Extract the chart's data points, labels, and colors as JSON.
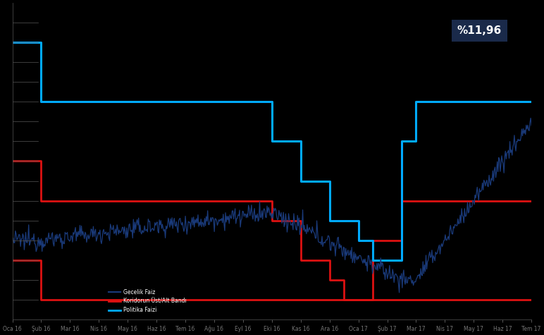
{
  "background_color": "#000000",
  "axes_color": "#000000",
  "tick_color": "#777777",
  "spine_color": "#555555",
  "annotation_text": "%11,96",
  "annotation_bg": "#1a2a4a",
  "annotation_fg": "#ffffff",
  "x_tick_labels": [
    "Oca 16",
    "Şub 16",
    "Mar 16",
    "Nis 16",
    "May 16",
    "Haz 16",
    "Tem 16",
    "Ağu 16",
    "Eyl 16",
    "Eki 16",
    "Kas 16",
    "Ara 16",
    "Oca 17",
    "Şub 17",
    "Mar 17",
    "Nis 17",
    "May 17",
    "Haz 17",
    "Tem 17"
  ],
  "ylim": [
    6.5,
    14.5
  ],
  "xlim": [
    0,
    18
  ],
  "upper_rate_steps": [
    [
      0.0,
      13.5
    ],
    [
      1.0,
      13.5
    ],
    [
      1.0,
      12.0
    ],
    [
      9.0,
      12.0
    ],
    [
      9.0,
      11.0
    ],
    [
      10.0,
      11.0
    ],
    [
      10.0,
      10.0
    ],
    [
      11.0,
      10.0
    ],
    [
      11.0,
      9.0
    ],
    [
      12.0,
      9.0
    ],
    [
      12.0,
      8.5
    ],
    [
      12.5,
      8.5
    ],
    [
      12.5,
      8.0
    ],
    [
      13.5,
      8.0
    ],
    [
      13.5,
      11.0
    ],
    [
      14.0,
      11.0
    ],
    [
      14.0,
      12.0
    ],
    [
      18.0,
      12.0
    ]
  ],
  "upper_rate_color": "#00aaff",
  "upper_rate_lw": 2.2,
  "upper_corridor_steps": [
    [
      0.0,
      10.5
    ],
    [
      1.0,
      10.5
    ],
    [
      1.0,
      9.5
    ],
    [
      9.0,
      9.5
    ],
    [
      9.0,
      9.0
    ],
    [
      10.0,
      9.0
    ],
    [
      10.0,
      8.0
    ],
    [
      11.0,
      8.0
    ],
    [
      11.0,
      7.5
    ],
    [
      11.5,
      7.5
    ],
    [
      11.5,
      7.0
    ],
    [
      12.5,
      7.0
    ],
    [
      12.5,
      8.5
    ],
    [
      13.5,
      8.5
    ],
    [
      13.5,
      9.5
    ],
    [
      18.0,
      9.5
    ]
  ],
  "upper_corridor_color": "#dd1111",
  "upper_corridor_lw": 2.0,
  "lower_corridor_steps": [
    [
      0.0,
      8.0
    ],
    [
      1.0,
      8.0
    ],
    [
      1.0,
      7.0
    ],
    [
      18.0,
      7.0
    ]
  ],
  "lower_corridor_color": "#dd1111",
  "lower_corridor_lw": 2.0,
  "market_rate_color": "#1a3a7a",
  "market_rate_lw": 0.9,
  "legend_items": [
    {
      "label": "Gecelik Faiz",
      "color": "#1a3a7a",
      "lw": 1.5
    },
    {
      "label": "Koridorun Üst/Alt Bandı",
      "color": "#dd1111",
      "lw": 2.0
    },
    {
      "label": "Politika Faizi",
      "color": "#00aaff",
      "lw": 2.0
    }
  ],
  "figsize": [
    7.72,
    4.75
  ],
  "dpi": 100
}
